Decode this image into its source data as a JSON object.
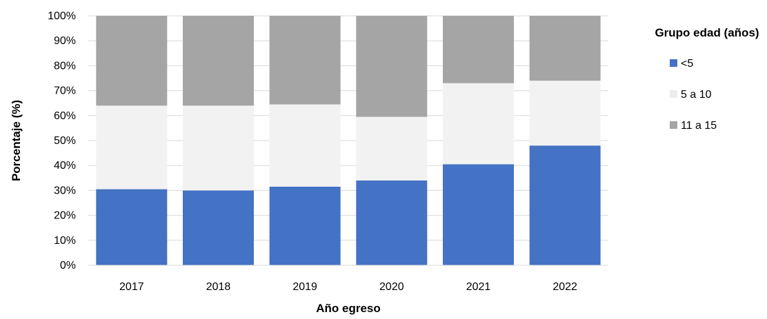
{
  "chart_data": {
    "type": "bar",
    "stacked": true,
    "categories": [
      "2017",
      "2018",
      "2019",
      "2020",
      "2021",
      "2022"
    ],
    "series": [
      {
        "name": "<5",
        "color": "#4472c4",
        "values": [
          30.5,
          30.0,
          31.5,
          34.0,
          40.5,
          48.0
        ]
      },
      {
        "name": "5 a 10",
        "color": "#f2f2f2",
        "values": [
          33.5,
          34.0,
          33.0,
          25.5,
          32.5,
          26.0
        ]
      },
      {
        "name": "11 a 15",
        "color": "#a5a5a5",
        "values": [
          36.0,
          36.0,
          35.5,
          40.5,
          27.0,
          26.0
        ]
      }
    ],
    "xlabel": "Año egreso",
    "ylabel": "Porcentaje (%)",
    "ylim": [
      0,
      100
    ],
    "yticks": [
      "0%",
      "10%",
      "20%",
      "30%",
      "40%",
      "50%",
      "60%",
      "70%",
      "80%",
      "90%",
      "100%"
    ],
    "grid": true,
    "legend": {
      "title": "Grupo edad (años)",
      "placement": "right"
    }
  }
}
